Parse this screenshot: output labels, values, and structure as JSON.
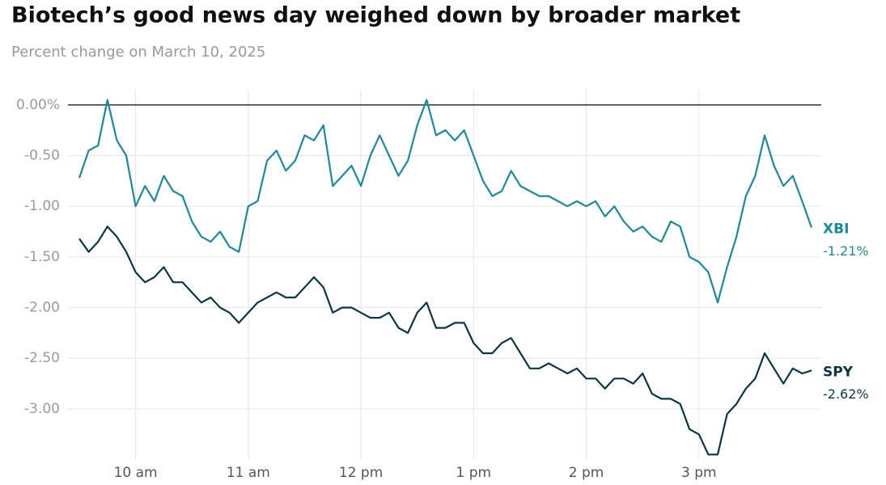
{
  "chart_data": {
    "type": "line",
    "title": "Biotech’s good news day weighed down by broader market",
    "subtitle": "Percent change on March 10, 2025",
    "categories": [
      null,
      null,
      null,
      null,
      null,
      null,
      "10 am",
      null,
      null,
      null,
      null,
      null,
      null,
      null,
      null,
      null,
      null,
      null,
      "11 am",
      null,
      null,
      null,
      null,
      null,
      null,
      null,
      null,
      null,
      null,
      null,
      "12 pm",
      null,
      null,
      null,
      null,
      null,
      null,
      null,
      null,
      null,
      null,
      null,
      "1 pm",
      null,
      null,
      null,
      null,
      null,
      null,
      null,
      null,
      null,
      null,
      null,
      "2 pm",
      null,
      null,
      null,
      null,
      null,
      null,
      null,
      null,
      null,
      null,
      null,
      "3 pm",
      null,
      null,
      null,
      null,
      null,
      null,
      null,
      null,
      null,
      null,
      null,
      null
    ],
    "series": [
      {
        "name": "XBI",
        "color": "#1c8a9b",
        "values": [
          -0.72,
          -0.45,
          -0.4,
          0.05,
          -0.35,
          -0.5,
          -1.0,
          -0.8,
          -0.95,
          -0.7,
          -0.85,
          -0.9,
          -1.15,
          -1.3,
          -1.35,
          -1.25,
          -1.4,
          -1.45,
          -1.0,
          -0.95,
          -0.55,
          -0.45,
          -0.65,
          -0.55,
          -0.3,
          -0.35,
          -0.2,
          -0.8,
          -0.7,
          -0.6,
          -0.8,
          -0.5,
          -0.3,
          -0.5,
          -0.7,
          -0.55,
          -0.2,
          0.05,
          -0.3,
          -0.25,
          -0.35,
          -0.25,
          -0.5,
          -0.75,
          -0.9,
          -0.85,
          -0.65,
          -0.8,
          -0.85,
          -0.9,
          -0.9,
          -0.95,
          -1.0,
          -0.95,
          -1.0,
          -0.95,
          -1.1,
          -1.0,
          -1.15,
          -1.25,
          -1.2,
          -1.3,
          -1.35,
          -1.15,
          -1.2,
          -1.5,
          -1.55,
          -1.65,
          -1.95,
          -1.6,
          -1.3,
          -0.9,
          -0.7,
          -0.3,
          -0.6,
          -0.8,
          -0.7,
          -0.95,
          -1.21
        ],
        "value_labels": [
          null,
          null,
          null,
          null,
          null,
          null,
          null,
          null,
          null,
          null,
          null,
          null,
          null,
          null,
          null,
          null,
          null,
          null,
          null,
          null,
          null,
          null,
          null,
          null,
          null,
          null,
          null,
          null,
          null,
          null,
          null,
          null,
          null,
          null,
          null,
          null,
          null,
          null,
          null,
          null,
          null,
          null,
          null,
          null,
          null,
          null,
          null,
          null,
          null,
          null,
          null,
          null,
          null,
          null,
          null,
          null,
          null,
          null,
          null,
          null,
          null,
          null,
          null,
          null,
          null,
          null,
          null,
          null,
          null,
          null,
          null,
          null,
          null,
          null,
          null,
          null,
          null,
          null,
          "-1.21%"
        ]
      },
      {
        "name": "SPY",
        "color": "#0b3646",
        "values": [
          -1.32,
          -1.45,
          -1.35,
          -1.2,
          -1.3,
          -1.45,
          -1.65,
          -1.75,
          -1.7,
          -1.6,
          -1.75,
          -1.75,
          -1.85,
          -1.95,
          -1.9,
          -2.0,
          -2.05,
          -2.15,
          -2.05,
          -1.95,
          -1.9,
          -1.85,
          -1.9,
          -1.9,
          -1.8,
          -1.7,
          -1.8,
          -2.05,
          -2.0,
          -2.0,
          -2.05,
          -2.1,
          -2.1,
          -2.05,
          -2.2,
          -2.25,
          -2.05,
          -1.95,
          -2.2,
          -2.2,
          -2.15,
          -2.15,
          -2.35,
          -2.45,
          -2.45,
          -2.35,
          -2.3,
          -2.45,
          -2.6,
          -2.6,
          -2.55,
          -2.6,
          -2.65,
          -2.6,
          -2.7,
          -2.7,
          -2.8,
          -2.7,
          -2.7,
          -2.75,
          -2.65,
          -2.85,
          -2.9,
          -2.9,
          -2.95,
          -3.2,
          -3.25,
          -3.45,
          -3.45,
          -3.05,
          -2.95,
          -2.8,
          -2.7,
          -2.45,
          -2.6,
          -2.75,
          -2.6,
          -2.65,
          -2.62
        ],
        "value_labels": [
          null,
          null,
          null,
          null,
          null,
          null,
          null,
          null,
          null,
          null,
          null,
          null,
          null,
          null,
          null,
          null,
          null,
          null,
          null,
          null,
          null,
          null,
          null,
          null,
          null,
          null,
          null,
          null,
          null,
          null,
          null,
          null,
          null,
          null,
          null,
          null,
          null,
          null,
          null,
          null,
          null,
          null,
          null,
          null,
          null,
          null,
          null,
          null,
          null,
          null,
          null,
          null,
          null,
          null,
          null,
          null,
          null,
          null,
          null,
          null,
          null,
          null,
          null,
          null,
          null,
          null,
          null,
          null,
          null,
          null,
          null,
          null,
          null,
          null,
          null,
          null,
          null,
          null,
          "-2.62%"
        ]
      }
    ],
    "ylim": [
      -3.5,
      0.15
    ],
    "yticks": [
      {
        "value": 0,
        "label": "0.00%"
      },
      {
        "value": -0.5,
        "label": "-0.50"
      },
      {
        "value": -1,
        "label": "-1.00"
      },
      {
        "value": -1.5,
        "label": "-1.50"
      },
      {
        "value": -2,
        "label": "-2.00"
      },
      {
        "value": -2.5,
        "label": "-2.50"
      },
      {
        "value": -3,
        "label": "-3.00"
      }
    ],
    "grid": true
  }
}
